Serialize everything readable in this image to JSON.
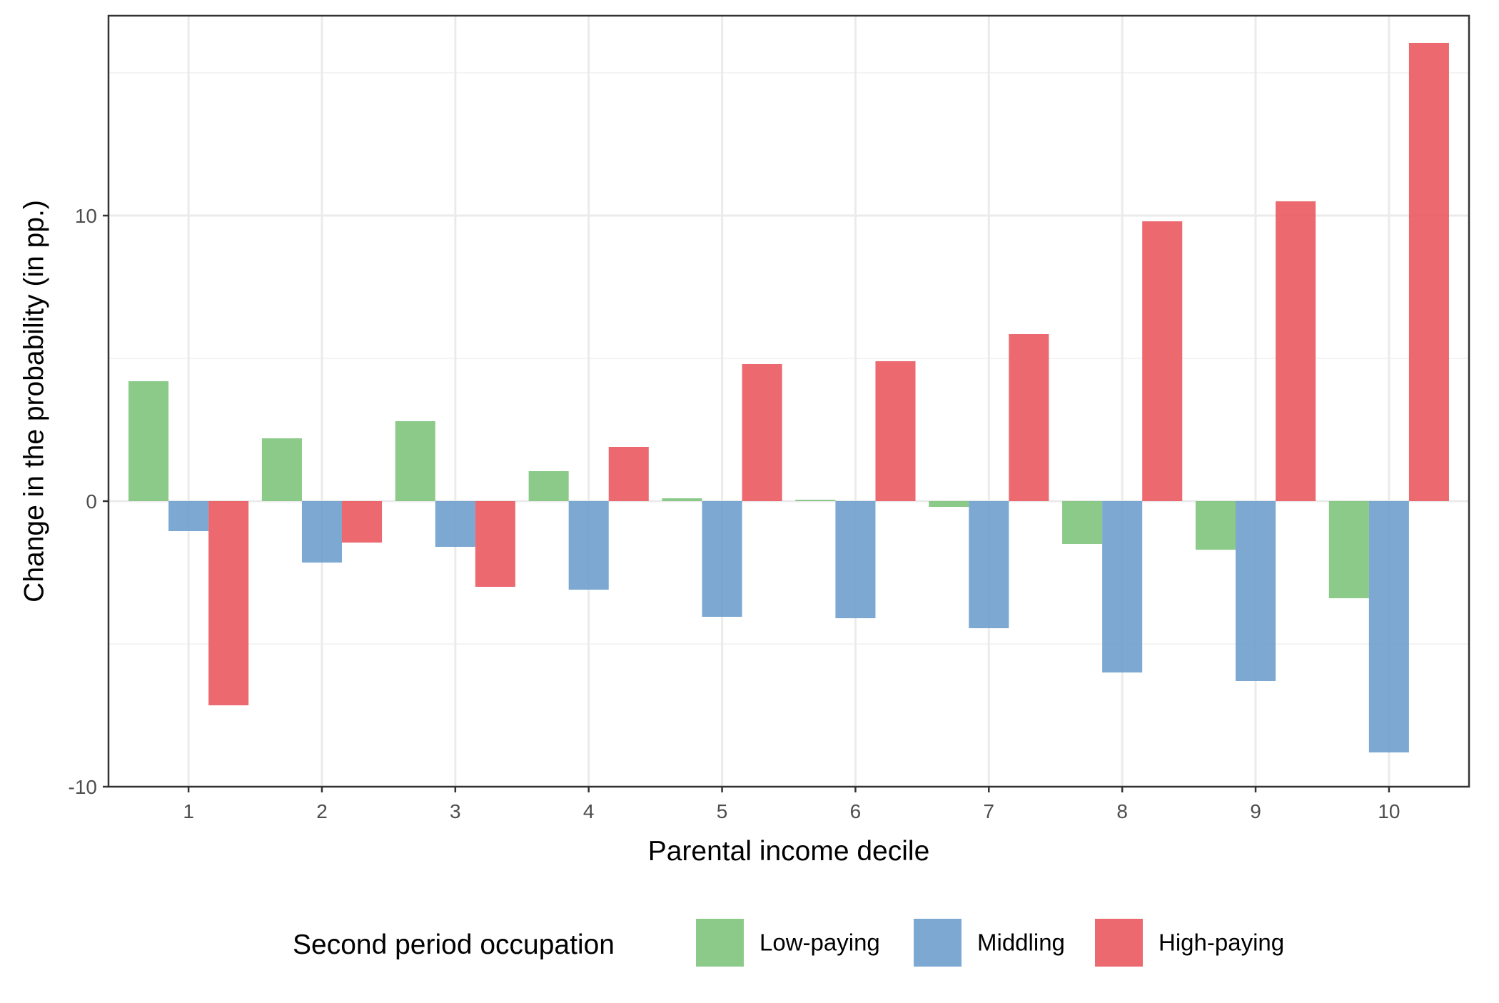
{
  "chart_data": {
    "type": "bar",
    "xlabel": "Parental income decile",
    "ylabel": "Change in the probability (in pp.)",
    "categories": [
      "1",
      "2",
      "3",
      "4",
      "5",
      "6",
      "7",
      "8",
      "9",
      "10"
    ],
    "ylim": [
      -10,
      17
    ],
    "yticks": [
      -10,
      0,
      10
    ],
    "ytick_labels": [
      "-10",
      "0",
      "10"
    ],
    "grid": true,
    "legend": {
      "title": "Second period occupation",
      "position": "bottom"
    },
    "series": [
      {
        "name": "Low-paying",
        "color": "#7fc47c",
        "values": [
          4.2,
          2.2,
          2.8,
          1.05,
          0.1,
          0.05,
          -0.2,
          -1.5,
          -1.7,
          -3.4
        ]
      },
      {
        "name": "Middling",
        "color": "#6e9fcc",
        "values": [
          -1.05,
          -2.15,
          -1.6,
          -3.1,
          -4.05,
          -4.1,
          -4.45,
          -6.0,
          -6.3,
          -8.8
        ]
      },
      {
        "name": "High-paying",
        "color": "#ea5a5f",
        "values": [
          -7.15,
          -1.45,
          -3.0,
          1.9,
          4.8,
          4.9,
          5.85,
          9.8,
          10.5,
          16.05
        ]
      }
    ]
  }
}
